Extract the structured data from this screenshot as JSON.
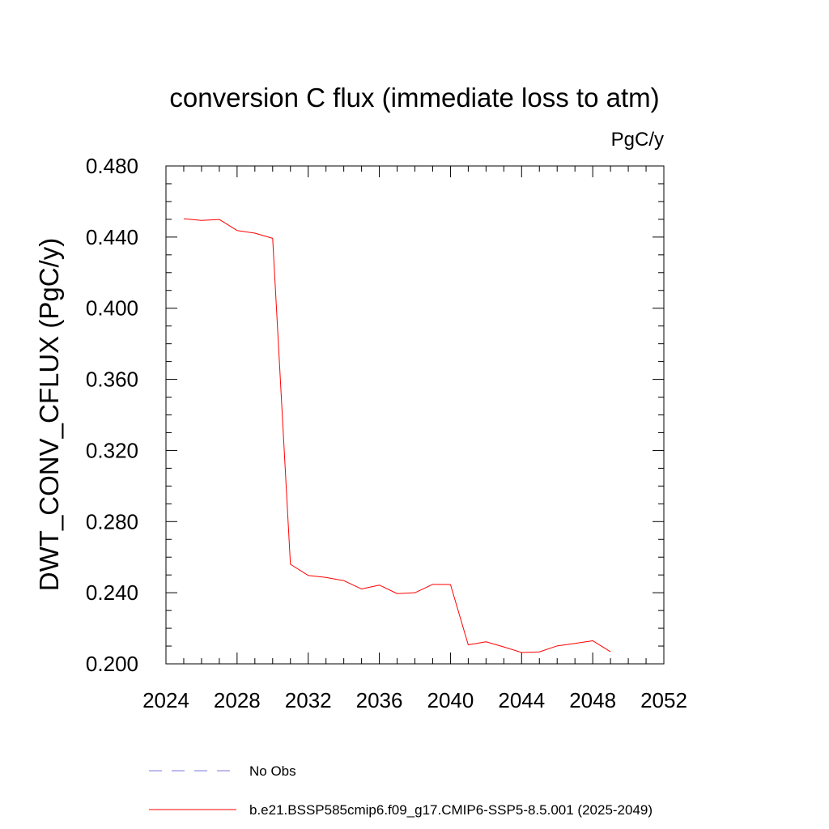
{
  "chart_data": {
    "type": "line",
    "title": "conversion C flux (immediate loss to atm)",
    "units": "PgC/y",
    "xlabel": "",
    "ylabel": "DWT_CONV_CFLUX  (PgC/y)",
    "xlim": [
      2024,
      2052
    ],
    "ylim": [
      0.2,
      0.48
    ],
    "x_ticks": [
      2024,
      2028,
      2032,
      2036,
      2040,
      2044,
      2048,
      2052
    ],
    "x_tick_labels": [
      "2024",
      "2028",
      "2032",
      "2036",
      "2040",
      "2044",
      "2048",
      "2052"
    ],
    "y_ticks": [
      0.2,
      0.24,
      0.28,
      0.32,
      0.36,
      0.4,
      0.44,
      0.48
    ],
    "y_tick_labels": [
      "0.200",
      "0.240",
      "0.280",
      "0.320",
      "0.360",
      "0.400",
      "0.440",
      "0.480"
    ],
    "x_minor_step": 1,
    "y_minor_step": 0.01,
    "series": [
      {
        "name": "b.e21.BSSP585cmip6.f09_g17.CMIP6-SSP5-8.5.001 (2025-2049)",
        "color": "#ff0000",
        "dash": "solid",
        "x": [
          2025,
          2026,
          2027,
          2028,
          2029,
          2030,
          2031,
          2032,
          2033,
          2034,
          2035,
          2036,
          2037,
          2038,
          2039,
          2040,
          2041,
          2042,
          2043,
          2044,
          2045,
          2046,
          2047,
          2048,
          2049
        ],
        "values": [
          0.4503,
          0.4494,
          0.4499,
          0.4437,
          0.4422,
          0.4393,
          0.256,
          0.2497,
          0.2486,
          0.2468,
          0.2421,
          0.2443,
          0.2395,
          0.24,
          0.2447,
          0.2446,
          0.2107,
          0.2124,
          0.2095,
          0.2064,
          0.2067,
          0.2101,
          0.2115,
          0.213,
          0.2068
        ]
      }
    ],
    "legend": [
      {
        "label": "No Obs",
        "color": "#7a7adc",
        "dash": "dashed"
      },
      {
        "label": "b.e21.BSSP585cmip6.f09_g17.CMIP6-SSP5-8.5.001 (2025-2049)",
        "color": "#ff0000",
        "dash": "solid"
      }
    ],
    "legend_position": "bottom"
  }
}
